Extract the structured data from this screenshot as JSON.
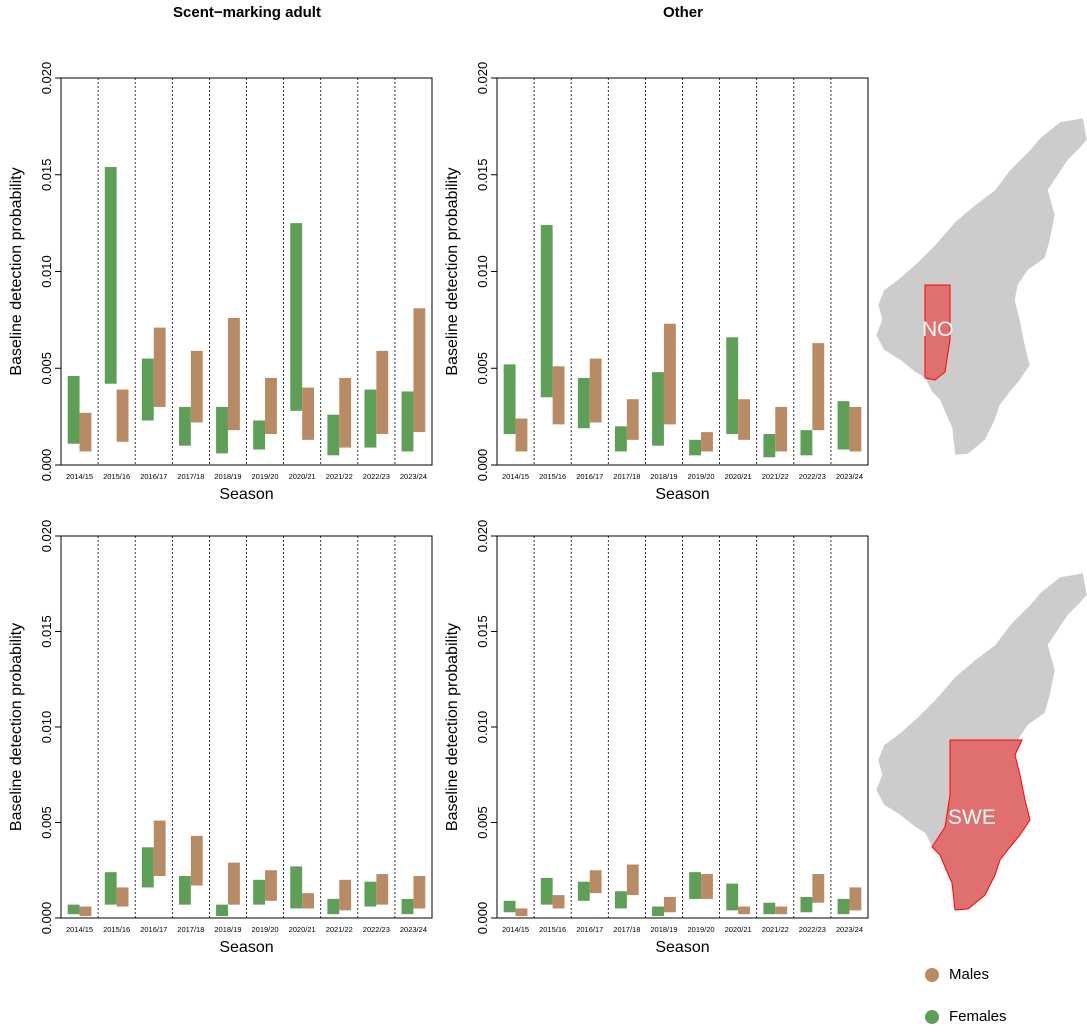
{
  "column_titles": [
    "Scent−marking adult",
    "Other"
  ],
  "map_labels": [
    "NO",
    "SWE"
  ],
  "legend": [
    {
      "label": "Males",
      "color": "#b98b64"
    },
    {
      "label": "Females",
      "color": "#5e9f57"
    }
  ],
  "colors": {
    "males": "#b98b64",
    "females": "#5e9f57",
    "map_land": "#cccccc",
    "map_highlight": "#e07070",
    "map_border": "#ff0000"
  },
  "chart_data": [
    {
      "type": "bar",
      "panel": "NO – Scent−marking adult",
      "categories": [
        "2014/15",
        "2015/16",
        "2016/17",
        "2017/18",
        "2018/19",
        "2019/20",
        "2020/21",
        "2021/22",
        "2022/23",
        "2023/24"
      ],
      "xlabel": "Season",
      "ylabel": "Baseline detection probability",
      "ylim": [
        0,
        0.02
      ],
      "yticks": [
        "0.000",
        "0.005",
        "0.010",
        "0.015",
        "0.020"
      ],
      "series": [
        {
          "name": "Females",
          "low": [
            0.0011,
            0.0042,
            0.0023,
            0.001,
            0.0006,
            0.0008,
            0.0028,
            0.0005,
            0.0009,
            0.0007
          ],
          "high": [
            0.0046,
            0.0154,
            0.0055,
            0.003,
            0.003,
            0.0023,
            0.0125,
            0.0026,
            0.0039,
            0.0038
          ]
        },
        {
          "name": "Males",
          "low": [
            0.0007,
            0.0012,
            0.003,
            0.0022,
            0.0018,
            0.0016,
            0.0013,
            0.0009,
            0.0016,
            0.0017
          ],
          "high": [
            0.0027,
            0.0039,
            0.0071,
            0.0059,
            0.0076,
            0.0045,
            0.004,
            0.0045,
            0.0059,
            0.0081
          ]
        }
      ]
    },
    {
      "type": "bar",
      "panel": "NO – Other",
      "categories": [
        "2014/15",
        "2015/16",
        "2016/17",
        "2017/18",
        "2018/19",
        "2019/20",
        "2020/21",
        "2021/22",
        "2022/23",
        "2023/24"
      ],
      "xlabel": "Season",
      "ylabel": "Baseline detection probability",
      "ylim": [
        0,
        0.02
      ],
      "yticks": [
        "0.000",
        "0.005",
        "0.010",
        "0.015",
        "0.020"
      ],
      "series": [
        {
          "name": "Females",
          "low": [
            0.0016,
            0.0035,
            0.0019,
            0.0007,
            0.001,
            0.0005,
            0.0016,
            0.0004,
            0.0005,
            0.0008
          ],
          "high": [
            0.0052,
            0.0124,
            0.0045,
            0.002,
            0.0048,
            0.0013,
            0.0066,
            0.0016,
            0.0018,
            0.0033
          ]
        },
        {
          "name": "Males",
          "low": [
            0.0007,
            0.0021,
            0.0022,
            0.0013,
            0.0021,
            0.0007,
            0.0013,
            0.0007,
            0.0018,
            0.0007
          ],
          "high": [
            0.0024,
            0.0051,
            0.0055,
            0.0034,
            0.0073,
            0.0017,
            0.0034,
            0.003,
            0.0063,
            0.003
          ]
        }
      ]
    },
    {
      "type": "bar",
      "panel": "SWE – Scent−marking adult",
      "categories": [
        "2014/15",
        "2015/16",
        "2016/17",
        "2017/18",
        "2018/19",
        "2019/20",
        "2020/21",
        "2021/22",
        "2022/23",
        "2023/24"
      ],
      "xlabel": "Season",
      "ylabel": "Baseline detection probability",
      "ylim": [
        0,
        0.02
      ],
      "yticks": [
        "0.000",
        "0.005",
        "0.010",
        "0.015",
        "0.020"
      ],
      "series": [
        {
          "name": "Females",
          "low": [
            0.0002,
            0.0007,
            0.0016,
            0.0007,
            0.0001,
            0.0007,
            0.0005,
            0.0002,
            0.0006,
            0.0002
          ],
          "high": [
            0.0007,
            0.0024,
            0.0037,
            0.0022,
            0.0007,
            0.002,
            0.0027,
            0.001,
            0.0019,
            0.001
          ]
        },
        {
          "name": "Males",
          "low": [
            0.0001,
            0.0006,
            0.0022,
            0.0017,
            0.0007,
            0.0009,
            0.0005,
            0.0004,
            0.0007,
            0.0005
          ],
          "high": [
            0.0006,
            0.0016,
            0.0051,
            0.0043,
            0.0029,
            0.0025,
            0.0013,
            0.002,
            0.0023,
            0.0022
          ]
        }
      ]
    },
    {
      "type": "bar",
      "panel": "SWE – Other",
      "categories": [
        "2014/15",
        "2015/16",
        "2016/17",
        "2017/18",
        "2018/19",
        "2019/20",
        "2020/21",
        "2021/22",
        "2022/23",
        "2023/24"
      ],
      "xlabel": "Season",
      "ylabel": "Baseline detection probability",
      "ylim": [
        0,
        0.02
      ],
      "yticks": [
        "0.000",
        "0.005",
        "0.010",
        "0.015",
        "0.020"
      ],
      "series": [
        {
          "name": "Females",
          "low": [
            0.0003,
            0.0007,
            0.0009,
            0.0005,
            0.0001,
            0.001,
            0.0004,
            0.0002,
            0.0003,
            0.0002
          ],
          "high": [
            0.0009,
            0.0021,
            0.0019,
            0.0014,
            0.0006,
            0.0024,
            0.0018,
            0.0008,
            0.0011,
            0.001
          ]
        },
        {
          "name": "Males",
          "low": [
            0.0001,
            0.0005,
            0.0013,
            0.0012,
            0.0003,
            0.001,
            0.0002,
            0.0002,
            0.0008,
            0.0004
          ],
          "high": [
            0.0005,
            0.0012,
            0.0025,
            0.0028,
            0.0011,
            0.0023,
            0.0006,
            0.0006,
            0.0023,
            0.0016
          ]
        }
      ]
    }
  ]
}
